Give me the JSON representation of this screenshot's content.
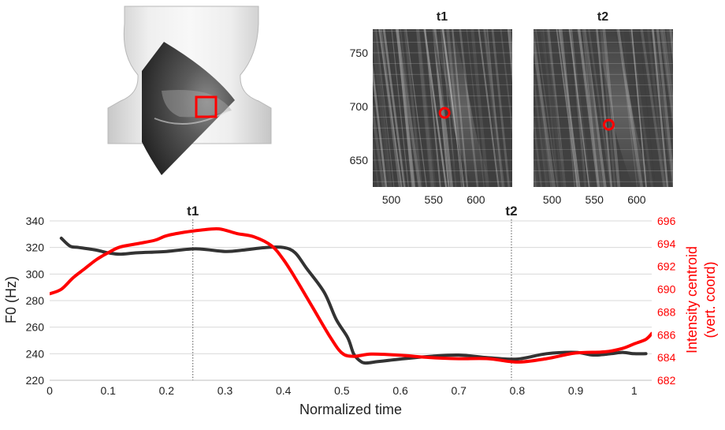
{
  "colors": {
    "f0_line": "#333333",
    "centroid_line": "#ff0000",
    "marker": "#ff0000",
    "grid": "#d9d9d9"
  },
  "icons": {
    "neck_figure": "neck-ultrasound-illustration",
    "roi_marker": "red-square-region-of-interest",
    "centroid_marker": "red-circle-marker"
  },
  "panels": {
    "t1": {
      "title": "t1",
      "marker": {
        "x": 563,
        "y": 694
      }
    },
    "t2": {
      "title": "t2",
      "marker": {
        "x": 567,
        "y": 683
      }
    },
    "xticks": [
      "500",
      "550",
      "600"
    ],
    "yticks": [
      "750",
      "700",
      "650"
    ],
    "xlim": [
      478,
      643
    ],
    "ylim": [
      625,
      772
    ]
  },
  "chart_data": {
    "type": "line",
    "xlabel": "Normalized time",
    "ylabel_left": "F0 (Hz)",
    "ylabel_right_lines": [
      "Intensity centroid",
      "(vert. coord)"
    ],
    "xlim": [
      0,
      1.03
    ],
    "ylim_left": [
      220,
      340
    ],
    "ylim_right": [
      682,
      696
    ],
    "xticks": [
      "0",
      "0.1",
      "0.2",
      "0.3",
      "0.4",
      "0.5",
      "0.6",
      "0.7",
      "0.8",
      "0.9",
      "1"
    ],
    "yticks_left": [
      "220",
      "240",
      "260",
      "280",
      "300",
      "320",
      "340"
    ],
    "yticks_right": [
      "682",
      "684",
      "686",
      "688",
      "690",
      "692",
      "694",
      "696"
    ],
    "grid": "horizontal",
    "vlines": [
      {
        "x": 0.245,
        "label": "t1"
      },
      {
        "x": 0.79,
        "label": "t2"
      }
    ],
    "series": [
      {
        "axis": "left",
        "x": [
          0.02,
          0.035,
          0.05,
          0.08,
          0.1,
          0.12,
          0.15,
          0.2,
          0.25,
          0.3,
          0.33,
          0.37,
          0.4,
          0.42,
          0.44,
          0.47,
          0.49,
          0.51,
          0.52,
          0.53,
          0.54,
          0.56,
          0.58,
          0.6,
          0.65,
          0.7,
          0.75,
          0.8,
          0.85,
          0.9,
          0.93,
          0.96,
          0.98,
          1.0,
          1.02
        ],
        "values": [
          327,
          321,
          320,
          318,
          316,
          315,
          316,
          317,
          319,
          317,
          318,
          320,
          320,
          316,
          304,
          286,
          266,
          252,
          240,
          235,
          233,
          234,
          235,
          236,
          238,
          239,
          237,
          236,
          240,
          241,
          239,
          240,
          241,
          240,
          240
        ]
      },
      {
        "axis": "right",
        "x": [
          0.0,
          0.02,
          0.04,
          0.06,
          0.08,
          0.1,
          0.12,
          0.15,
          0.18,
          0.2,
          0.23,
          0.26,
          0.29,
          0.32,
          0.35,
          0.38,
          0.4,
          0.42,
          0.45,
          0.48,
          0.5,
          0.52,
          0.55,
          0.6,
          0.65,
          0.7,
          0.75,
          0.8,
          0.85,
          0.9,
          0.95,
          0.98,
          1.0,
          1.02,
          1.03
        ],
        "values": [
          689.6,
          690.0,
          691.0,
          691.8,
          692.6,
          693.2,
          693.7,
          694.0,
          694.3,
          694.7,
          695.0,
          695.2,
          695.3,
          694.9,
          694.6,
          693.8,
          692.6,
          691.0,
          688.4,
          685.8,
          684.4,
          684.1,
          684.3,
          684.2,
          684.0,
          683.9,
          683.9,
          683.6,
          683.9,
          684.4,
          684.5,
          684.8,
          685.2,
          685.6,
          686.1
        ]
      }
    ]
  }
}
